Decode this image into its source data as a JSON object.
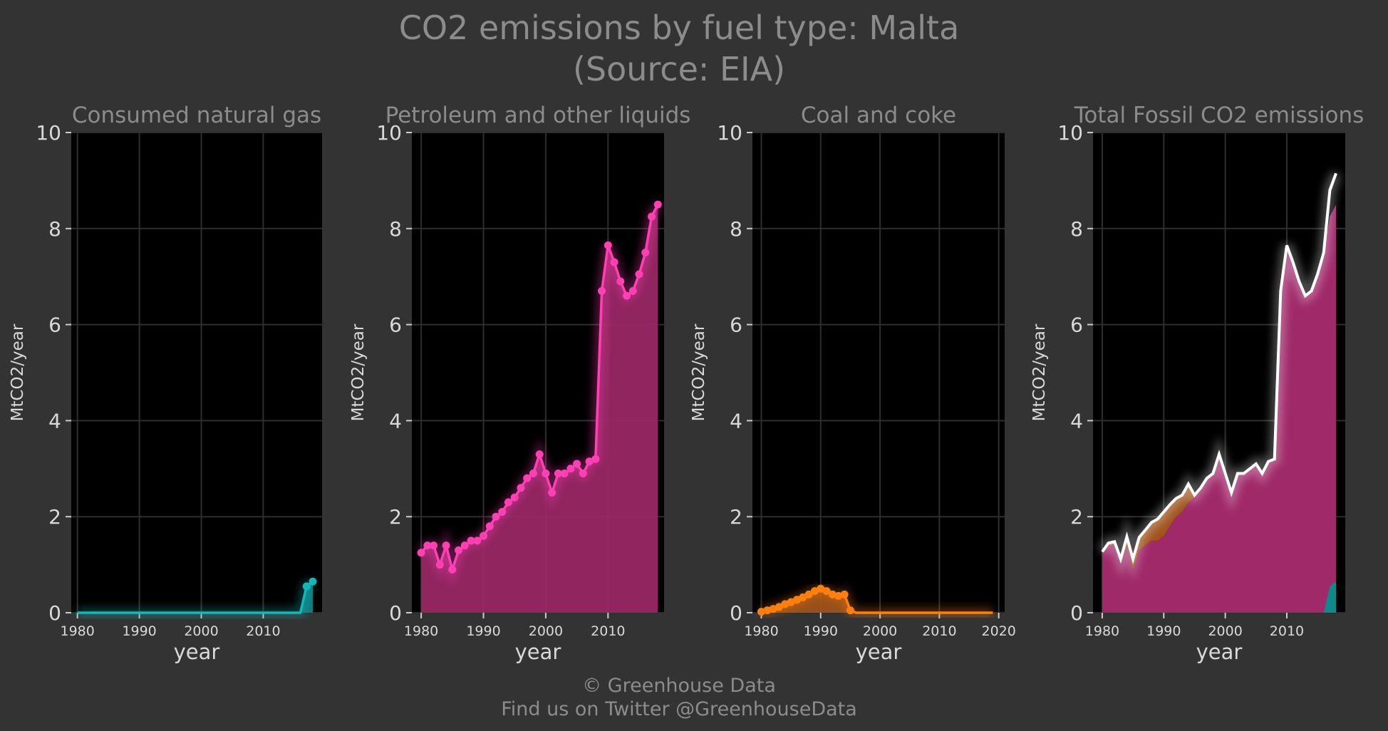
{
  "title_line1": "CO2 emissions by fuel type: Malta",
  "title_line2": "(Source: EIA)",
  "footer_line1": "© Greenhouse Data",
  "footer_line2": "Find us on Twitter @GreenhouseData",
  "colors": {
    "background": "#333333",
    "panel": "#000000",
    "grid": "#2e2e2e",
    "natural_gas": "#16b6b6",
    "natural_gas_fill": "#0e8a8a",
    "petroleum": "#ff3fb4",
    "petroleum_fill": "#a0296a",
    "coal": "#ff7f0e",
    "coal_fill": "#a9591d",
    "total": "#ffffff"
  },
  "chart_data": [
    {
      "type": "area",
      "title": "Consumed natural gas",
      "xlabel": "year",
      "ylabel": "MtCO2/year",
      "xlim": [
        1979,
        2019.5
      ],
      "ylim": [
        0,
        10
      ],
      "xticks": [
        1980,
        1990,
        2000,
        2010
      ],
      "yticks": [
        0,
        2,
        4,
        6,
        8,
        10
      ],
      "grid": true,
      "markers": "last-two",
      "series": [
        {
          "x": [
            1980,
            1981,
            1982,
            1983,
            1984,
            1985,
            1986,
            1987,
            1988,
            1989,
            1990,
            1991,
            1992,
            1993,
            1994,
            1995,
            1996,
            1997,
            1998,
            1999,
            2000,
            2001,
            2002,
            2003,
            2004,
            2005,
            2006,
            2007,
            2008,
            2009,
            2010,
            2011,
            2012,
            2013,
            2014,
            2015,
            2016,
            2017,
            2018
          ],
          "y": [
            0,
            0,
            0,
            0,
            0,
            0,
            0,
            0,
            0,
            0,
            0,
            0,
            0,
            0,
            0,
            0,
            0,
            0,
            0,
            0,
            0,
            0,
            0,
            0,
            0,
            0,
            0,
            0,
            0,
            0,
            0,
            0,
            0,
            0,
            0,
            0,
            0,
            0.55,
            0.65
          ]
        }
      ]
    },
    {
      "type": "area",
      "title": "Petroleum and other liquids",
      "xlabel": "year",
      "ylabel": "MtCO2/year",
      "xlim": [
        1978.5,
        2019
      ],
      "ylim": [
        0,
        10
      ],
      "xticks": [
        1980,
        1990,
        2000,
        2010
      ],
      "yticks": [
        0,
        2,
        4,
        6,
        8,
        10
      ],
      "grid": true,
      "markers": "all",
      "series": [
        {
          "x": [
            1980,
            1981,
            1982,
            1983,
            1984,
            1985,
            1986,
            1987,
            1988,
            1989,
            1990,
            1991,
            1992,
            1993,
            1994,
            1995,
            1996,
            1997,
            1998,
            1999,
            2000,
            2001,
            2002,
            2003,
            2004,
            2005,
            2006,
            2007,
            2008,
            2009,
            2010,
            2011,
            2012,
            2013,
            2014,
            2015,
            2016,
            2017,
            2018
          ],
          "y": [
            1.25,
            1.4,
            1.4,
            1.0,
            1.4,
            0.9,
            1.3,
            1.4,
            1.5,
            1.5,
            1.6,
            1.8,
            2.0,
            2.1,
            2.3,
            2.4,
            2.6,
            2.8,
            2.9,
            3.3,
            2.9,
            2.5,
            2.9,
            2.9,
            3.0,
            3.1,
            2.9,
            3.15,
            3.2,
            6.7,
            7.65,
            7.3,
            6.9,
            6.6,
            6.7,
            7.05,
            7.5,
            8.25,
            8.5
          ]
        }
      ]
    },
    {
      "type": "area",
      "title": "Coal and coke",
      "xlabel": "year",
      "ylabel": "MtCO2/year",
      "xlim": [
        1978.5,
        2021
      ],
      "ylim": [
        0,
        10
      ],
      "xticks": [
        1980,
        1990,
        2000,
        2010,
        2020
      ],
      "yticks": [
        0,
        2,
        4,
        6,
        8,
        10
      ],
      "grid": true,
      "markers": "nonzero",
      "series": [
        {
          "x": [
            1980,
            1981,
            1982,
            1983,
            1984,
            1985,
            1986,
            1987,
            1988,
            1989,
            1990,
            1991,
            1992,
            1993,
            1994,
            1995,
            1996,
            1997,
            1998,
            1999,
            2000,
            2001,
            2002,
            2003,
            2004,
            2005,
            2006,
            2007,
            2008,
            2009,
            2010,
            2011,
            2012,
            2013,
            2014,
            2015,
            2016,
            2017,
            2018,
            2019
          ],
          "y": [
            0.02,
            0.05,
            0.08,
            0.12,
            0.18,
            0.22,
            0.27,
            0.32,
            0.38,
            0.45,
            0.5,
            0.45,
            0.38,
            0.35,
            0.38,
            0.05,
            0,
            0,
            0,
            0,
            0,
            0,
            0,
            0,
            0,
            0,
            0,
            0,
            0,
            0,
            0,
            0,
            0,
            0,
            0,
            0,
            0,
            0,
            0,
            0
          ]
        }
      ]
    },
    {
      "type": "area",
      "title": "Total Fossil CO2 emissions",
      "xlabel": "year",
      "ylabel": "MtCO2/year",
      "xlim": [
        1978.5,
        2019.5
      ],
      "ylim": [
        0,
        10
      ],
      "xticks": [
        1980,
        1990,
        2000,
        2010
      ],
      "yticks": [
        0,
        2,
        4,
        6,
        8,
        10
      ],
      "grid": true,
      "series": [
        {
          "name": "total",
          "x": [
            1980,
            1981,
            1982,
            1983,
            1984,
            1985,
            1986,
            1987,
            1988,
            1989,
            1990,
            1991,
            1992,
            1993,
            1994,
            1995,
            1996,
            1997,
            1998,
            1999,
            2000,
            2001,
            2002,
            2003,
            2004,
            2005,
            2006,
            2007,
            2008,
            2009,
            2010,
            2011,
            2012,
            2013,
            2014,
            2015,
            2016,
            2017,
            2018
          ],
          "y": [
            1.27,
            1.45,
            1.48,
            1.12,
            1.58,
            1.12,
            1.57,
            1.72,
            1.88,
            1.95,
            2.1,
            2.25,
            2.38,
            2.45,
            2.68,
            2.45,
            2.6,
            2.8,
            2.9,
            3.3,
            2.9,
            2.5,
            2.9,
            2.9,
            3.0,
            3.1,
            2.9,
            3.15,
            3.2,
            6.7,
            7.65,
            7.3,
            6.9,
            6.6,
            6.7,
            7.05,
            7.5,
            8.8,
            9.15
          ]
        }
      ]
    }
  ]
}
